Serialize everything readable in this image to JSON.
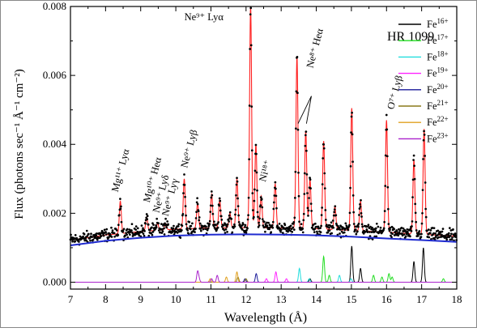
{
  "chart_data": {
    "type": "line",
    "title": "HR 1099",
    "xlabel": "Wavelength (Å)",
    "ylabel": "Flux (photons sec⁻¹ Å⁻¹ cm⁻²)",
    "xlim": [
      7,
      18
    ],
    "ylim": [
      -0.0002,
      0.008
    ],
    "x_ticks": [
      7,
      8,
      9,
      10,
      11,
      12,
      13,
      14,
      15,
      16,
      17,
      18
    ],
    "y_ticks": [
      0.0,
      0.002,
      0.004,
      0.006,
      0.008
    ],
    "y_tick_labels": [
      "0.000",
      "0.002",
      "0.004",
      "0.006",
      "0.008"
    ],
    "grid": false,
    "legend_position": "top-right",
    "continuum": {
      "color": "#1f2bd0",
      "x": [
        7.0,
        8.0,
        9.0,
        10.0,
        11.0,
        12.0,
        13.0,
        14.0,
        15.0,
        16.0,
        17.0,
        18.0
      ],
      "y": [
        0.00107,
        0.0012,
        0.00129,
        0.00135,
        0.00138,
        0.00139,
        0.00138,
        0.00136,
        0.00132,
        0.00127,
        0.00122,
        0.00117
      ]
    },
    "model_color": "#ff2020",
    "observed_points_color": "#000000",
    "emission_lines": [
      {
        "wavelength": 8.42,
        "peak": 0.00235
      },
      {
        "wavelength": 9.17,
        "peak": 0.0019
      },
      {
        "wavelength": 9.48,
        "peak": 0.0017
      },
      {
        "wavelength": 9.71,
        "peak": 0.0017
      },
      {
        "wavelength": 10.24,
        "peak": 0.003
      },
      {
        "wavelength": 10.62,
        "peak": 0.0023
      },
      {
        "wavelength": 11.02,
        "peak": 0.00255
      },
      {
        "wavelength": 11.25,
        "peak": 0.0024
      },
      {
        "wavelength": 11.54,
        "peak": 0.002
      },
      {
        "wavelength": 11.74,
        "peak": 0.003
      },
      {
        "wavelength": 12.13,
        "peak": 0.008
      },
      {
        "wavelength": 12.28,
        "peak": 0.004
      },
      {
        "wavelength": 12.43,
        "peak": 0.0025
      },
      {
        "wavelength": 12.83,
        "peak": 0.00285
      },
      {
        "wavelength": 13.45,
        "peak": 0.00655
      },
      {
        "wavelength": 13.7,
        "peak": 0.0044
      },
      {
        "wavelength": 13.82,
        "peak": 0.003
      },
      {
        "wavelength": 14.21,
        "peak": 0.0041
      },
      {
        "wavelength": 14.53,
        "peak": 0.0022
      },
      {
        "wavelength": 15.01,
        "peak": 0.00505
      },
      {
        "wavelength": 15.26,
        "peak": 0.00235
      },
      {
        "wavelength": 16.0,
        "peak": 0.0047
      },
      {
        "wavelength": 16.78,
        "peak": 0.00355
      },
      {
        "wavelength": 17.07,
        "peak": 0.00445
      }
    ],
    "series": [
      {
        "name": "Fe",
        "charge": "16+",
        "color": "#000000",
        "lines": [
          [
            15.01,
            0.00105
          ],
          [
            15.26,
            0.0004
          ],
          [
            16.78,
            0.0006
          ],
          [
            17.05,
            0.001
          ],
          [
            13.82,
            0.0001
          ]
        ]
      },
      {
        "name": "Fe",
        "charge": "17+",
        "color": "#22dd22",
        "lines": [
          [
            14.21,
            0.00075
          ],
          [
            14.37,
            0.0002
          ],
          [
            15.63,
            0.0002
          ],
          [
            15.87,
            0.00015
          ],
          [
            16.07,
            0.00025
          ],
          [
            16.16,
            0.00015
          ],
          [
            17.62,
            0.0001
          ]
        ]
      },
      {
        "name": "Fe",
        "charge": "18+",
        "color": "#22dddd",
        "lines": [
          [
            13.52,
            0.0004
          ],
          [
            13.8,
            0.0001
          ],
          [
            14.66,
            0.0002
          ],
          [
            14.99,
            0.0001
          ]
        ]
      },
      {
        "name": "Fe",
        "charge": "19+",
        "color": "#ff22ff",
        "lines": [
          [
            12.85,
            0.0003
          ],
          [
            13.15,
            0.0001
          ],
          [
            12.58,
            0.0001
          ]
        ]
      },
      {
        "name": "Fe",
        "charge": "20+",
        "color": "#1a1a99",
        "lines": [
          [
            12.29,
            0.00025
          ],
          [
            11.97,
            0.0001
          ]
        ]
      },
      {
        "name": "Fe",
        "charge": "21+",
        "color": "#8a7a1a",
        "lines": [
          [
            11.77,
            0.00015
          ],
          [
            12.0,
            0.0001
          ]
        ]
      },
      {
        "name": "Fe",
        "charge": "22+",
        "color": "#e0a020",
        "lines": [
          [
            11.74,
            0.0003
          ],
          [
            11.44,
            0.00015
          ],
          [
            10.98,
            0.0001
          ]
        ]
      },
      {
        "name": "Fe",
        "charge": "23+",
        "color": "#aa22cc",
        "lines": [
          [
            10.62,
            0.0003
          ],
          [
            11.18,
            0.0002
          ],
          [
            11.02,
            0.0001
          ],
          [
            10.66,
            0.0001
          ]
        ]
      }
    ],
    "annotations": [
      {
        "text": "Ne⁹⁺ Lyα",
        "x": 10.8,
        "y": 0.0076,
        "rotate": false
      },
      {
        "text": "Ne⁸⁺ Heα",
        "x": 13.9,
        "y": 0.0062,
        "rotate": true
      },
      {
        "text": "O⁷⁺ Lyβ",
        "x": 16.2,
        "y": 0.005,
        "rotate": true
      },
      {
        "text": "Ni¹⁸⁺",
        "x": 12.55,
        "y": 0.0029,
        "rotate": true
      },
      {
        "text": "Mg¹¹⁺ Lyα",
        "x": 8.35,
        "y": 0.0026,
        "rotate": true
      },
      {
        "text": "Mg¹⁰⁺ Heα",
        "x": 9.25,
        "y": 0.0023,
        "rotate": true
      },
      {
        "text": "Ne⁹⁺ Lyδ",
        "x": 9.52,
        "y": 0.002,
        "rotate": true
      },
      {
        "text": "Ne⁹⁺ Lyγ",
        "x": 9.78,
        "y": 0.0019,
        "rotate": true
      },
      {
        "text": "Ne⁹⁺ Lyβ",
        "x": 10.32,
        "y": 0.0033,
        "rotate": true
      }
    ]
  }
}
